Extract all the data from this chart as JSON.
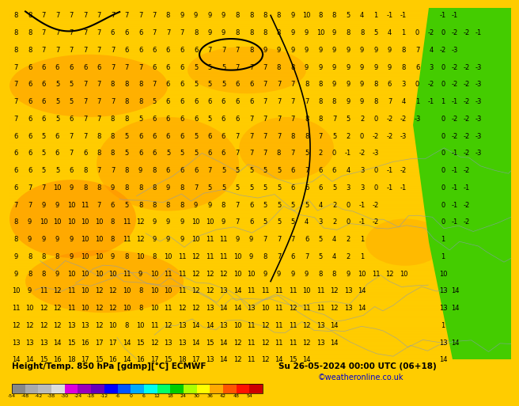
{
  "title_left": "Height/Temp. 850 hPa [gdmp][°C] ECMWF",
  "title_right": "Su 26-05-2024 00:00 UTC (06+18)",
  "credit": "©weatheronline.co.uk",
  "bg_color": "#ffcc00",
  "fig_width": 6.34,
  "fig_height": 4.9,
  "colorbar_colors": [
    "#888888",
    "#aaaaaa",
    "#bbbbbb",
    "#dddddd",
    "#dd00dd",
    "#9900bb",
    "#6600bb",
    "#0000ff",
    "#0055ff",
    "#00aaff",
    "#00ffee",
    "#00ff66",
    "#00cc00",
    "#aaff00",
    "#ffff00",
    "#ffaa00",
    "#ff5500",
    "#ff1100",
    "#cc0000"
  ],
  "cb_labels": [
    -54,
    -48,
    -42,
    -38,
    -30,
    -24,
    -18,
    -12,
    -6,
    0,
    6,
    12,
    18,
    24,
    30,
    36,
    42,
    48,
    54
  ],
  "map_data": [
    [
      8,
      8,
      7,
      7,
      7,
      7,
      7,
      7,
      7,
      7,
      7,
      8,
      9,
      9,
      9,
      9,
      8,
      8,
      8,
      8,
      9,
      10,
      8,
      8,
      5,
      4,
      1,
      -1,
      -1
    ],
    [
      8,
      8,
      7,
      7,
      7,
      7,
      7,
      6,
      6,
      6,
      7,
      7,
      7,
      8,
      9,
      9,
      8,
      8,
      8,
      8,
      9,
      9,
      10,
      9,
      8,
      8,
      5,
      4,
      1,
      0,
      -2,
      -2,
      -1
    ],
    [
      8,
      8,
      7,
      7,
      7,
      7,
      7,
      7,
      6,
      6,
      6,
      6,
      6,
      6,
      7,
      7,
      7,
      8,
      9,
      9,
      9,
      9,
      9,
      9,
      9,
      9,
      9,
      9,
      8,
      7,
      4,
      1,
      -2,
      -3
    ],
    [
      7,
      6,
      6,
      6,
      6,
      6,
      6,
      7,
      7,
      7,
      6,
      6,
      6,
      5,
      5,
      5,
      7,
      7,
      7,
      8,
      8,
      9,
      9,
      9,
      9,
      9,
      9,
      9,
      8,
      6,
      3,
      0,
      -2,
      -2,
      -3
    ],
    [
      7,
      6,
      6,
      5,
      5,
      7,
      7,
      8,
      8,
      8,
      7,
      6,
      6,
      5,
      5,
      5,
      6,
      6,
      7,
      7,
      7,
      8,
      8,
      9,
      9,
      9,
      8,
      6,
      3,
      0,
      -2,
      -2,
      -3
    ],
    [
      7,
      6,
      6,
      5,
      5,
      7,
      7,
      7,
      8,
      8,
      5,
      6,
      6,
      6,
      6,
      6,
      6,
      6,
      7,
      7,
      7,
      7,
      8,
      8,
      9,
      9,
      8,
      7,
      4,
      1,
      -1,
      -2,
      -3
    ],
    [
      7,
      6,
      6,
      5,
      6,
      7,
      7,
      8,
      8,
      5,
      6,
      6,
      6,
      6,
      5,
      6,
      6,
      7,
      7,
      7,
      7,
      8,
      8,
      7,
      5,
      2,
      0,
      -2,
      -2,
      -3
    ],
    [
      6,
      6,
      5,
      6,
      7,
      7,
      8,
      8,
      5,
      6,
      6,
      6,
      6,
      5,
      6,
      6,
      7,
      7,
      7,
      7,
      8,
      8,
      7,
      5,
      2,
      0,
      -2,
      -2,
      -3
    ],
    [
      6,
      6,
      5,
      6,
      7,
      6,
      8,
      8,
      5,
      6,
      6,
      5,
      5,
      5,
      6,
      6,
      7,
      7,
      7,
      8,
      7,
      5,
      2,
      0,
      -1,
      -2,
      -3
    ],
    [
      6,
      6,
      5,
      5,
      6,
      8,
      7,
      7,
      8,
      9,
      8,
      6,
      6,
      6,
      7,
      5,
      5,
      5,
      5,
      5,
      6,
      7,
      6,
      6,
      4,
      3,
      0,
      -1,
      -2
    ],
    [
      6,
      7,
      7,
      10,
      9,
      8,
      8,
      9,
      8,
      8,
      8,
      9,
      8,
      7,
      5,
      5,
      5,
      5,
      5,
      5,
      6,
      6,
      6,
      5,
      3,
      3,
      0,
      -1,
      -1
    ],
    [
      7,
      7,
      9,
      9,
      10,
      11,
      7,
      6,
      5,
      8,
      8,
      8,
      8,
      9,
      9,
      8,
      7,
      6,
      5,
      5,
      5,
      5,
      4,
      2,
      0,
      -1,
      -2
    ],
    [
      8,
      9,
      10,
      10,
      10,
      10,
      10,
      8,
      11,
      12,
      9,
      9,
      9,
      10,
      10,
      9,
      7,
      6,
      5,
      5,
      5,
      4,
      3,
      2,
      0,
      -1,
      -2
    ],
    [
      8,
      9,
      9,
      9,
      9,
      10,
      10,
      8,
      11,
      12,
      9,
      9,
      9,
      10,
      11,
      11,
      9,
      9,
      7,
      7,
      7,
      6,
      5,
      4,
      2,
      1
    ],
    [
      9,
      8,
      8,
      8,
      9,
      10,
      10,
      9,
      8,
      10,
      8,
      10,
      11,
      12,
      11,
      11,
      10,
      9,
      8,
      7,
      6,
      7,
      5,
      4,
      2,
      1
    ],
    [
      9,
      8,
      8,
      9,
      10,
      10,
      10,
      10,
      11,
      9,
      10,
      11,
      11,
      12,
      12,
      12,
      10,
      10,
      9,
      9,
      9,
      9,
      8,
      8,
      9,
      10,
      11,
      12,
      10
    ],
    [
      10,
      9,
      11,
      12,
      11,
      10,
      12,
      12,
      10,
      8,
      10,
      10,
      11,
      12,
      12,
      13,
      14,
      11,
      11,
      11,
      11,
      10,
      11,
      12,
      13,
      14
    ],
    [
      11,
      10,
      12,
      12,
      11,
      10,
      12,
      12,
      10,
      8,
      10,
      11,
      12,
      12,
      13,
      14,
      14,
      13,
      10,
      11,
      12,
      11,
      11,
      12,
      13,
      14
    ],
    [
      12,
      12,
      12,
      12,
      13,
      13,
      12,
      10,
      8,
      10,
      11,
      12,
      13,
      14,
      14,
      13,
      10,
      11,
      12,
      11,
      11,
      12,
      13,
      14
    ],
    [
      13,
      13,
      13,
      14,
      15,
      16,
      17,
      17,
      14,
      15,
      12,
      13,
      13,
      14,
      15,
      14,
      12,
      11,
      12,
      11,
      11,
      12,
      13,
      14
    ],
    [
      14,
      14,
      15,
      16,
      18,
      17,
      15,
      16,
      14,
      16,
      17,
      15,
      18,
      17,
      13,
      14,
      12,
      11,
      12,
      14,
      15,
      14
    ]
  ],
  "right_col_data": [
    [
      -1,
      -1
    ],
    [
      0,
      -2,
      -2,
      -1
    ],
    [
      -2,
      -3
    ],
    [
      0,
      -2,
      -2,
      -3
    ],
    [
      0,
      -2,
      -2,
      -3
    ],
    [
      1,
      -1,
      -2,
      -3
    ],
    [
      0,
      -2,
      -2,
      -3
    ],
    [
      0,
      -2,
      -2,
      -3
    ],
    [
      0,
      -1,
      -2,
      -3
    ],
    [
      0,
      -1,
      -2
    ],
    [
      0,
      -1,
      -1
    ],
    [
      0,
      -1,
      -2
    ],
    [
      0,
      -1,
      -2
    ],
    [
      1
    ],
    [
      1
    ],
    [
      10
    ],
    [
      13,
      14
    ],
    [
      13,
      14
    ],
    [
      1
    ],
    [
      13,
      14
    ],
    [
      14
    ]
  ]
}
